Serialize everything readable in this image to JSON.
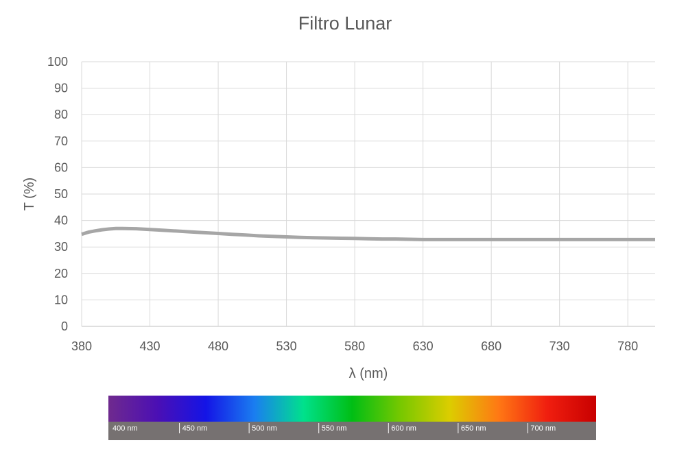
{
  "colors": {
    "series": "#a6a6a6",
    "text": "#595959",
    "grid": "#d9d9d9",
    "spectrum_band": "#767171"
  },
  "chart_data": {
    "type": "line",
    "title": "Filtro Lunar",
    "xlabel": "λ (nm)",
    "ylabel": "T (%)",
    "xlim": [
      380,
      800
    ],
    "ylim": [
      0,
      100
    ],
    "x_ticks": [
      380,
      430,
      480,
      530,
      580,
      630,
      680,
      730,
      780
    ],
    "y_ticks": [
      0,
      10,
      20,
      30,
      40,
      50,
      60,
      70,
      80,
      90,
      100
    ],
    "grid": true,
    "legend": "none",
    "series": [
      {
        "x": [
          380,
          385,
          390,
          395,
          400,
          405,
          410,
          420,
          430,
          440,
          450,
          460,
          470,
          480,
          490,
          500,
          510,
          520,
          530,
          540,
          550,
          560,
          570,
          580,
          590,
          600,
          610,
          620,
          630,
          650,
          680,
          700,
          730,
          760,
          780,
          800
        ],
        "values": [
          34.8,
          35.6,
          36.1,
          36.5,
          36.8,
          37.0,
          37.0,
          36.9,
          36.6,
          36.3,
          36.0,
          35.7,
          35.4,
          35.1,
          34.8,
          34.5,
          34.2,
          34.0,
          33.8,
          33.6,
          33.5,
          33.4,
          33.3,
          33.2,
          33.1,
          33.0,
          33.0,
          32.9,
          32.8,
          32.8,
          32.8,
          32.8,
          32.8,
          32.8,
          32.8,
          32.8
        ]
      }
    ]
  },
  "spectrum_strip": {
    "labels": [
      "400 nm",
      "450 nm",
      "500 nm",
      "550 nm",
      "600 nm",
      "650 nm",
      "700 nm"
    ],
    "gradient_colors": [
      "#6f2a8e",
      "#4b0fb4",
      "#1414e6",
      "#1a7ef0",
      "#00e18c",
      "#00be14",
      "#78c800",
      "#dccd00",
      "#ff7814",
      "#f01e0f",
      "#c80000"
    ]
  }
}
